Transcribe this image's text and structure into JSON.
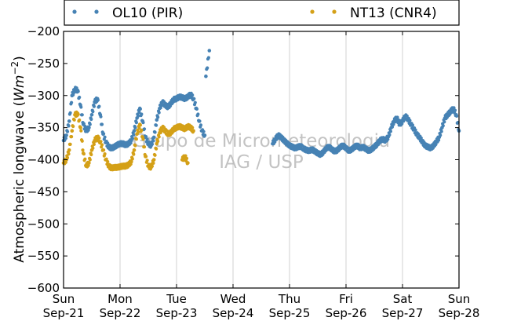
{
  "chart_data": {
    "type": "scatter",
    "ylabel": "Atmospheric longwave (",
    "ylabel_units": "Wm",
    "ylabel_exp": "−2",
    "ylabel_close": ")",
    "ylim": [
      -200,
      -600
    ],
    "xlim": [
      0,
      7
    ],
    "yticks": [
      -200,
      -250,
      -300,
      -350,
      -400,
      -450,
      -500,
      -550,
      -600
    ],
    "ytick_labels": [
      "−200",
      "−250",
      "−300",
      "−350",
      "−400",
      "−450",
      "−500",
      "−550",
      "−600"
    ],
    "xticks": [
      0,
      1,
      2,
      3,
      4,
      5,
      6,
      7
    ],
    "xtick_labels": [
      [
        "Sun",
        "Sep-21"
      ],
      [
        "Mon",
        "Sep-22"
      ],
      [
        "Tue",
        "Sep-23"
      ],
      [
        "Wed",
        "Sep-24"
      ],
      [
        "Thu",
        "Sep-25"
      ],
      [
        "Fri",
        "Sep-26"
      ],
      [
        "Sat",
        "Sep-27"
      ],
      [
        "Sun",
        "Sep-28"
      ]
    ],
    "grid": "vertical",
    "legend_position": "top",
    "watermark": [
      "Grupo de Micrometeorologia",
      "IAG / USP"
    ],
    "series": [
      {
        "name": "OL10 (PIR)",
        "color": "#4682b4",
        "segments": [
          {
            "x": [
              0.0,
              0.05,
              0.1,
              0.15,
              0.2,
              0.25,
              0.3,
              0.35,
              0.4,
              0.45,
              0.5,
              0.55,
              0.6,
              0.65,
              0.7,
              0.75,
              0.8,
              0.85,
              0.9,
              0.95,
              1.0,
              1.05,
              1.1,
              1.15,
              1.2,
              1.25,
              1.3,
              1.35,
              1.4,
              1.45,
              1.5,
              1.55,
              1.6,
              1.65,
              1.7,
              1.75,
              1.8,
              1.85,
              1.9,
              1.95,
              2.0,
              2.05,
              2.1,
              2.15,
              2.2,
              2.25,
              2.3,
              2.35,
              2.4,
              2.45,
              2.5
            ],
            "y": [
              -370,
              -362,
              -340,
              -300,
              -290,
              -292,
              -315,
              -345,
              -355,
              -350,
              -330,
              -310,
              -305,
              -330,
              -360,
              -373,
              -380,
              -382,
              -380,
              -377,
              -375,
              -375,
              -377,
              -375,
              -370,
              -355,
              -335,
              -320,
              -340,
              -365,
              -375,
              -378,
              -365,
              -338,
              -320,
              -310,
              -315,
              -318,
              -312,
              -306,
              -305,
              -302,
              -303,
              -305,
              -302,
              -298,
              -305,
              -320,
              -340,
              -355,
              -362
            ]
          },
          {
            "x": [
              2.52,
              2.58
            ],
            "y": [
              -270,
              -230
            ]
          },
          {
            "x": [
              3.7,
              3.75,
              3.8,
              3.85,
              3.9,
              3.95,
              4.0,
              4.05,
              4.1,
              4.15,
              4.2,
              4.25,
              4.3,
              4.35,
              4.4,
              4.45,
              4.5,
              4.55,
              4.6,
              4.65,
              4.7,
              4.75,
              4.8,
              4.85,
              4.9,
              4.95,
              5.0,
              5.05,
              5.1,
              5.15,
              5.2,
              5.25,
              5.3,
              5.35,
              5.4,
              5.45,
              5.5,
              5.55,
              5.6,
              5.65,
              5.7,
              5.75,
              5.8,
              5.85,
              5.9,
              5.95,
              6.0,
              6.05,
              6.1,
              6.15,
              6.2,
              6.25,
              6.3,
              6.35,
              6.4,
              6.45,
              6.5,
              6.55,
              6.6,
              6.65,
              6.7,
              6.75,
              6.8,
              6.85,
              6.9,
              6.95,
              7.0
            ],
            "y": [
              -375,
              -368,
              -362,
              -365,
              -370,
              -374,
              -378,
              -380,
              -382,
              -380,
              -379,
              -383,
              -385,
              -386,
              -384,
              -387,
              -390,
              -392,
              -388,
              -382,
              -380,
              -384,
              -387,
              -385,
              -380,
              -378,
              -382,
              -386,
              -384,
              -380,
              -378,
              -382,
              -380,
              -383,
              -386,
              -384,
              -380,
              -376,
              -370,
              -368,
              -370,
              -364,
              -350,
              -340,
              -335,
              -345,
              -340,
              -332,
              -337,
              -345,
              -352,
              -360,
              -365,
              -372,
              -378,
              -380,
              -382,
              -378,
              -372,
              -365,
              -350,
              -335,
              -330,
              -325,
              -320,
              -330,
              -355
            ]
          }
        ]
      },
      {
        "name": "NT13 (CNR4)",
        "color": "#d4a017",
        "segments": [
          {
            "x": [
              0.0,
              0.05,
              0.1,
              0.15,
              0.2,
              0.25,
              0.3,
              0.35,
              0.4,
              0.45,
              0.5,
              0.55,
              0.6,
              0.65,
              0.7,
              0.75,
              0.8,
              0.85,
              0.9,
              0.95,
              1.0,
              1.05,
              1.1,
              1.15,
              1.2,
              1.25,
              1.3,
              1.35,
              1.4,
              1.45,
              1.5,
              1.55,
              1.6,
              1.65,
              1.7,
              1.75,
              1.8,
              1.85,
              1.9,
              1.95,
              2.0,
              2.05,
              2.1,
              2.15,
              2.2,
              2.25,
              2.3
            ],
            "y": [
              -405,
              -400,
              -385,
              -355,
              -330,
              -328,
              -350,
              -390,
              -410,
              -405,
              -385,
              -370,
              -365,
              -372,
              -385,
              -400,
              -410,
              -413,
              -412,
              -412,
              -411,
              -410,
              -410,
              -408,
              -403,
              -385,
              -360,
              -345,
              -365,
              -395,
              -410,
              -412,
              -400,
              -375,
              -358,
              -350,
              -355,
              -360,
              -358,
              -352,
              -350,
              -348,
              -350,
              -352,
              -348,
              -350,
              -355
            ]
          },
          {
            "x": [
              2.1,
              2.15,
              2.2
            ],
            "y": [
              -400,
              -395,
              -405
            ]
          }
        ]
      }
    ]
  }
}
